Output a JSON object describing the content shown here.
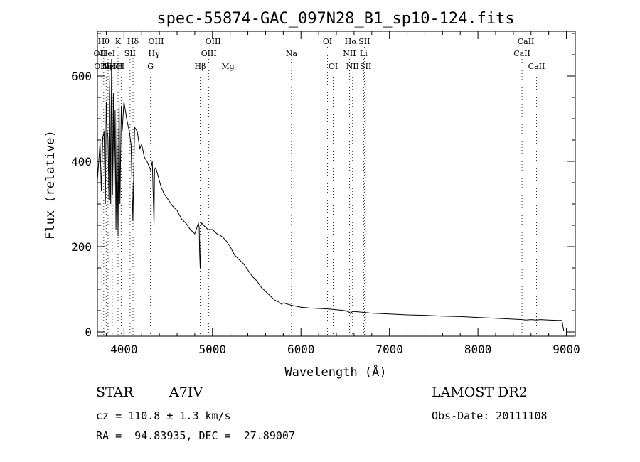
{
  "chart_data": {
    "type": "line",
    "title": "spec-55874-GAC_097N28_B1_sp10-124.fits",
    "xlabel": "Wavelength (Å)",
    "ylabel": "Flux (relative)",
    "xlim": [
      3700,
      9100
    ],
    "ylim": [
      -10,
      705
    ],
    "xticks": [
      4000,
      5000,
      6000,
      7000,
      8000,
      9000
    ],
    "yticks": [
      0,
      200,
      400,
      600
    ],
    "grid": false,
    "legend": "none",
    "series": [
      {
        "name": "",
        "x": [
          3700,
          3715,
          3730,
          3745,
          3760,
          3775,
          3790,
          3800,
          3810,
          3820,
          3830,
          3835,
          3840,
          3850,
          3860,
          3870,
          3880,
          3889,
          3900,
          3910,
          3920,
          3933,
          3945,
          3955,
          3970,
          3980,
          4000,
          4030,
          4060,
          4080,
          4101,
          4120,
          4150,
          4180,
          4200,
          4230,
          4260,
          4300,
          4320,
          4340,
          4345,
          4360,
          4380,
          4420,
          4450,
          4500,
          4550,
          4600,
          4650,
          4700,
          4750,
          4800,
          4840,
          4850,
          4855,
          4861,
          4866,
          4870,
          4880,
          4900,
          4950,
          5000,
          5050,
          5100,
          5150,
          5200,
          5250,
          5300,
          5350,
          5400,
          5450,
          5500,
          5550,
          5600,
          5650,
          5700,
          5750,
          5780,
          5800,
          5850,
          5900,
          5950,
          6000,
          6100,
          6200,
          6300,
          6400,
          6500,
          6550,
          6563,
          6575,
          6600,
          6700,
          6800,
          7000,
          7200,
          7400,
          7600,
          7800,
          8000,
          8200,
          8400,
          8498,
          8542,
          8600,
          8662,
          8700,
          8800,
          8900,
          8950,
          8960,
          8970
        ],
        "y": [
          355,
          400,
          445,
          330,
          455,
          470,
          300,
          540,
          470,
          455,
          310,
          550,
          600,
          300,
          640,
          320,
          560,
          330,
          520,
          240,
          500,
          225,
          550,
          300,
          530,
          470,
          540,
          500,
          470,
          440,
          260,
          480,
          470,
          430,
          440,
          410,
          400,
          380,
          400,
          250,
          380,
          385,
          370,
          340,
          325,
          310,
          295,
          285,
          265,
          255,
          240,
          230,
          255,
          245,
          185,
          150,
          195,
          250,
          255,
          250,
          240,
          240,
          230,
          225,
          215,
          200,
          180,
          170,
          160,
          145,
          130,
          120,
          105,
          95,
          85,
          75,
          70,
          65,
          68,
          65,
          62,
          60,
          58,
          56,
          55,
          54,
          52,
          50,
          46,
          42,
          47,
          48,
          46,
          44,
          42,
          40,
          39,
          37,
          36,
          34,
          32,
          30,
          29,
          28,
          29,
          28,
          29,
          28,
          27,
          27,
          14,
          3
        ]
      }
    ],
    "lines": [
      {
        "lambda": 3727,
        "label": "OII",
        "row": 2
      },
      {
        "lambda": 3750,
        "label": "OIII",
        "row": 3
      },
      {
        "lambda": 3771,
        "label": "Hθ",
        "row": 1
      },
      {
        "lambda": 3798,
        "label": "Hη",
        "row": 3
      },
      {
        "lambda": 3820,
        "label": "HeI",
        "row": 2
      },
      {
        "lambda": 3868,
        "label": "NeIII",
        "row": 3
      },
      {
        "lambda": 3889,
        "label": "Hζ",
        "row": 3
      },
      {
        "lambda": 3933,
        "label": "K",
        "row": 1
      },
      {
        "lambda": 3968,
        "label": "H",
        "row": 3
      },
      {
        "lambda": 4069,
        "label": "SII",
        "row": 2
      },
      {
        "lambda": 4102,
        "label": "Hδ",
        "row": 1
      },
      {
        "lambda": 4300,
        "label": "G",
        "row": 3
      },
      {
        "lambda": 4340,
        "label": "Hγ",
        "row": 2
      },
      {
        "lambda": 4363,
        "label": "OIII",
        "row": 1
      },
      {
        "lambda": 4861,
        "label": "Hβ",
        "row": 3
      },
      {
        "lambda": 4959,
        "label": "OIII",
        "row": 2
      },
      {
        "lambda": 5007,
        "label": "OIII",
        "row": 1
      },
      {
        "lambda": 5175,
        "label": "Mg",
        "row": 3
      },
      {
        "lambda": 5893,
        "label": "Na",
        "row": 2
      },
      {
        "lambda": 6300,
        "label": "OI",
        "row": 1
      },
      {
        "lambda": 6364,
        "label": "OI",
        "row": 3
      },
      {
        "lambda": 6548,
        "label": "NII",
        "row": 2
      },
      {
        "lambda": 6563,
        "label": "Hα",
        "row": 1
      },
      {
        "lambda": 6583,
        "label": "NII",
        "row": 3
      },
      {
        "lambda": 6708,
        "label": "Li",
        "row": 2
      },
      {
        "lambda": 6716,
        "label": "SII",
        "row": 1
      },
      {
        "lambda": 6731,
        "label": "SII",
        "row": 3
      },
      {
        "lambda": 8498,
        "label": "CaII",
        "row": 2
      },
      {
        "lambda": 8542,
        "label": "CaII",
        "row": 1
      },
      {
        "lambda": 8662,
        "label": "CaII",
        "row": 3
      }
    ]
  },
  "info": {
    "class_label": "STAR",
    "subclass": "A7IV",
    "survey": "LAMOST DR2",
    "cz": "cz = 110.8 ± 1.3 km/s",
    "obs_date": "Obs-Date: 20111108",
    "radec": "RA =  94.83935, DEC =  27.89007"
  }
}
